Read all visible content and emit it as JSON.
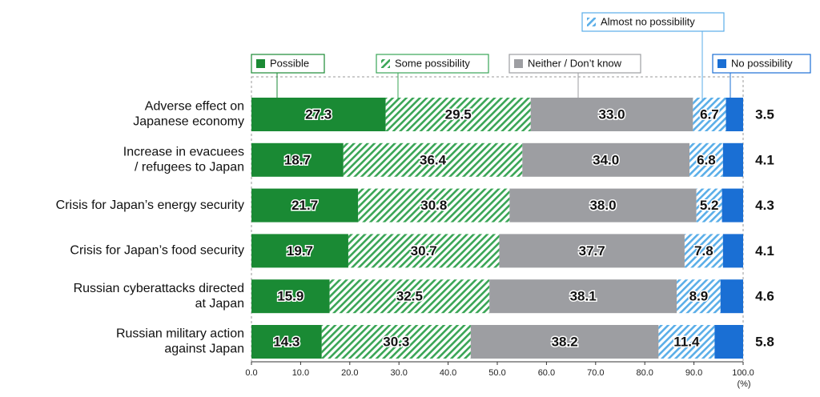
{
  "chart_data": {
    "type": "stacked-barh",
    "categories": [
      [
        "Adverse effect on",
        "Japanese economy"
      ],
      [
        "Increase in evacuees",
        "/ refugees to Japan"
      ],
      [
        "Crisis for Japan’s energy security"
      ],
      [
        "Crisis for Japan’s food security"
      ],
      [
        "Russian cyberattacks directed",
        "at Japan"
      ],
      [
        "Russian military action",
        "against Japan"
      ]
    ],
    "series": [
      {
        "name": "Possible",
        "color": "#1a8a34",
        "hatch": false,
        "values": [
          27.3,
          18.7,
          21.7,
          19.7,
          15.9,
          14.3
        ],
        "value_labels": [
          "27.3",
          "18.7",
          "21.7",
          "19.7",
          "15.9",
          "14.3"
        ]
      },
      {
        "name": "Some possibility",
        "color": "#3aa556",
        "hatch": true,
        "values": [
          29.5,
          36.4,
          30.8,
          30.7,
          32.5,
          30.3
        ],
        "value_labels": [
          "29.5",
          "36.4",
          "30.8",
          "30.7",
          "32.5",
          "30.3"
        ]
      },
      {
        "name": "Neither / Don’t know",
        "color": "#9d9ea2",
        "hatch": false,
        "values": [
          33.0,
          34.0,
          38.0,
          37.7,
          38.1,
          38.2
        ],
        "value_labels": [
          "33.0",
          "34.0",
          "38.0",
          "37.7",
          "38.1",
          "38.2"
        ]
      },
      {
        "name": "Almost no possibility",
        "color": "#5aaee8",
        "hatch": true,
        "values": [
          6.7,
          6.8,
          5.2,
          7.8,
          8.9,
          11.4
        ],
        "value_labels": [
          "6.7",
          "6.8",
          "5.2",
          "7.8",
          "8.9",
          "11.4"
        ]
      },
      {
        "name": "No possibility",
        "color": "#1a6fd4",
        "hatch": false,
        "values": [
          3.5,
          4.1,
          4.3,
          4.1,
          4.6,
          5.8
        ],
        "value_labels": [
          "3.5",
          "4.1",
          "4.3",
          "4.1",
          "4.6",
          "5.8"
        ]
      }
    ],
    "xlim": [
      0,
      100
    ],
    "xticks": [
      {
        "value": 0,
        "label": "0.0"
      },
      {
        "value": 10,
        "label": "10.0"
      },
      {
        "value": 20,
        "label": "20.0"
      },
      {
        "value": 30,
        "label": "30.0"
      },
      {
        "value": 40,
        "label": "40.0"
      },
      {
        "value": 50,
        "label": "50.0"
      },
      {
        "value": 60,
        "label": "60.0"
      },
      {
        "value": 70,
        "label": "70.0"
      },
      {
        "value": 80,
        "label": "80.0"
      },
      {
        "value": 90,
        "label": "90.0"
      },
      {
        "value": 100,
        "label": "100.0"
      }
    ],
    "xlabel": "(%)"
  }
}
